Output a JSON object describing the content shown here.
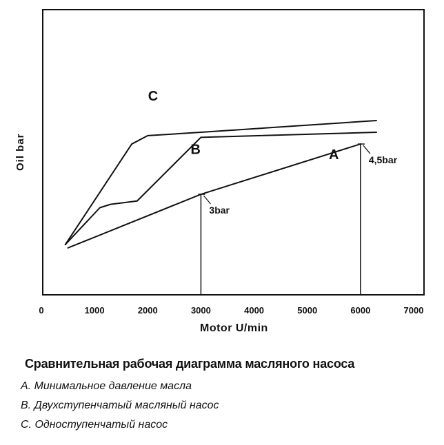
{
  "chart_data": {
    "type": "line",
    "xlabel": "Motor U/min",
    "ylabel": "Oil bar",
    "xlim": [
      0,
      7000
    ],
    "x_ticks": [
      0,
      1000,
      2000,
      3000,
      4000,
      5000,
      6000,
      7000
    ],
    "ylim": [
      0,
      6
    ],
    "y_ticks_shown": false,
    "grid": false,
    "series": [
      {
        "name": "A",
        "x": [
          500,
          3000,
          6000
        ],
        "y": [
          1.4,
          3.0,
          4.5
        ]
      },
      {
        "name": "B",
        "x": [
          450,
          1100,
          1300,
          1800,
          3000,
          6300
        ],
        "y": [
          1.5,
          2.6,
          2.7,
          2.8,
          4.7,
          4.85
        ]
      },
      {
        "name": "C",
        "x": [
          450,
          1700,
          2000,
          3000,
          6300
        ],
        "y": [
          1.5,
          4.5,
          4.75,
          4.85,
          5.2
        ]
      }
    ],
    "annotations": [
      {
        "text": "3bar",
        "x": 3000,
        "y": 3.0
      },
      {
        "text": "4,5bar",
        "x": 6000,
        "y": 4.5
      }
    ]
  },
  "caption": "Сравнительная рабочая диаграмма масляного насоса",
  "legend": [
    "А. Минимальное давление масла",
    "В. Двухступенчатый масляный насос",
    "С. Одноступенчатый насос"
  ]
}
